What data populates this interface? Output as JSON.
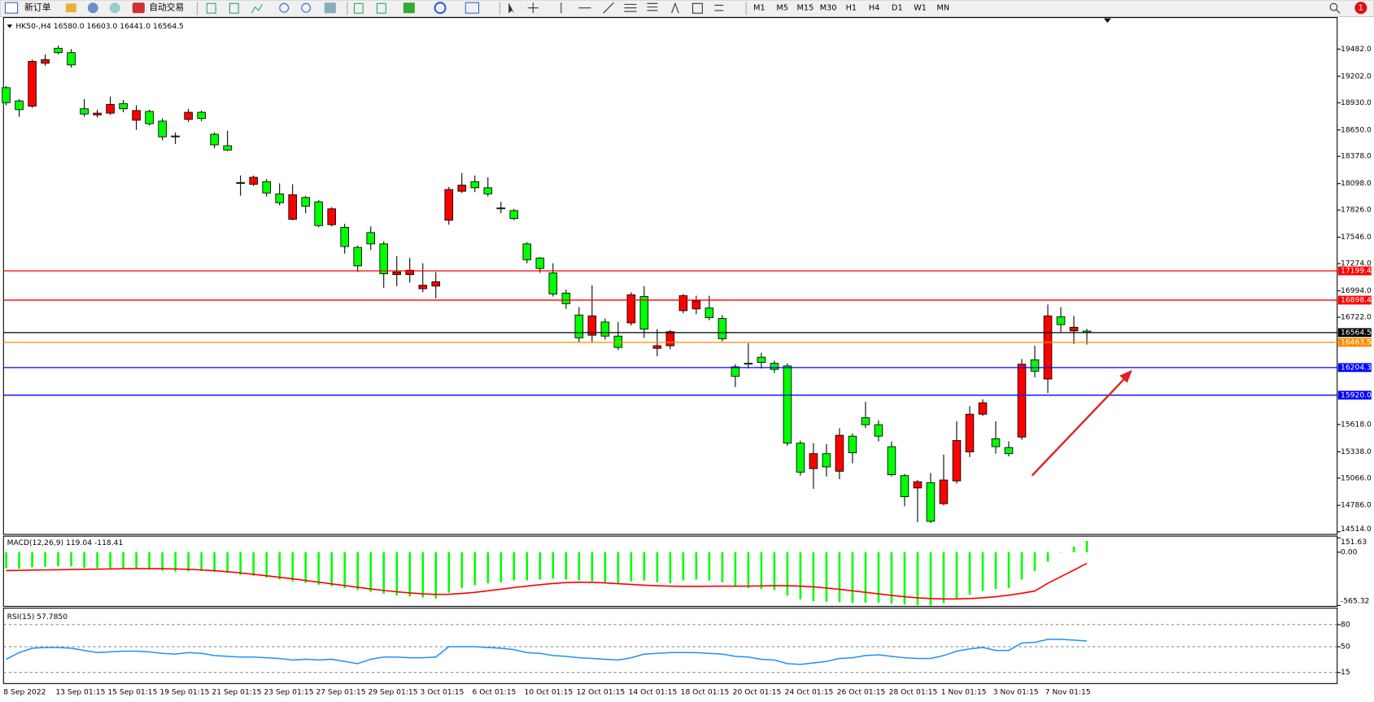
{
  "toolbar": {
    "new_order": "新订单",
    "auto_trading": "自动交易",
    "timeframes": [
      "M1",
      "M5",
      "M15",
      "M30",
      "H1",
      "H4",
      "D1",
      "W1",
      "MN"
    ],
    "alert_count": "1"
  },
  "chart_data": [
    {
      "type": "candlestick",
      "title": "HK50-,H4  16580.0 16603.0 16441.0 16564.5",
      "categories": [
        "8 Sep 2022",
        null,
        null,
        null,
        "13 Sep 01:15",
        null,
        null,
        null,
        "15 Sep 01:15",
        null,
        null,
        null,
        "19 Sep 01:15",
        null,
        null,
        null,
        "21 Sep 01:15",
        null,
        null,
        null,
        "23 Sep 01:15",
        null,
        null,
        null,
        "27 Sep 01:15",
        null,
        null,
        null,
        "29 Sep 01:15",
        null,
        null,
        null,
        "3 Oct 01:15",
        null,
        null,
        null,
        "6 Oct 01:15",
        null,
        null,
        null,
        "10 Oct 01:15",
        null,
        null,
        null,
        "12 Oct 01:15",
        null,
        null,
        null,
        "14 Oct 01:15",
        null,
        null,
        null,
        "18 Oct 01:15",
        null,
        null,
        null,
        "20 Oct 01:15",
        null,
        null,
        null,
        "24 Oct 01:15",
        null,
        null,
        null,
        "26 Oct 01:15",
        null,
        null,
        null,
        "28 Oct 01:15",
        null,
        null,
        null,
        "1 Nov 01:15",
        null,
        null,
        null,
        "3 Nov 01:15",
        null,
        null,
        null,
        "7 Nov 01:15",
        null,
        null,
        null
      ],
      "open": [
        19085,
        18949,
        18895,
        19337,
        19491,
        19446,
        18868,
        18805,
        18823,
        18922,
        18750,
        18841,
        18741,
        18588,
        18759,
        18832,
        18606,
        18488,
        18109,
        18091,
        18118,
        17992,
        17730,
        17955,
        17910,
        17675,
        17648,
        17441,
        17594,
        17477,
        17161,
        17161,
        17016,
        17043,
        17721,
        18019,
        18118,
        18055,
        17847,
        17820,
        17477,
        17332,
        17179,
        16971,
        16745,
        16537,
        16673,
        16528,
        16664,
        16935,
        16402,
        16429,
        16790,
        16808,
        16817,
        16709,
        16212,
        16248,
        16311,
        16248,
        16221,
        15426,
        15164,
        15318,
        15137,
        15498,
        15688,
        15616,
        15390,
        15092,
        14965,
        15020,
        14803,
        15038,
        15336,
        15724,
        15471,
        15381,
        15489,
        16284,
        16086,
        16727,
        16582,
        16580
      ],
      "high": [
        19103,
        18967,
        19374,
        19428,
        19518,
        19482,
        18967,
        18859,
        18994,
        18958,
        18904,
        18859,
        18768,
        18624,
        18868,
        18850,
        18624,
        18642,
        18181,
        18181,
        18145,
        18100,
        18091,
        17973,
        17928,
        17856,
        17684,
        17459,
        17657,
        17504,
        17350,
        17332,
        17278,
        17188,
        18064,
        18208,
        18181,
        18163,
        17910,
        17838,
        17495,
        17341,
        17278,
        17007,
        16826,
        17052,
        16709,
        16673,
        16980,
        17043,
        16600,
        16591,
        16962,
        16944,
        16944,
        16745,
        16239,
        16456,
        16357,
        16275,
        16248,
        15453,
        15426,
        15417,
        15580,
        15526,
        15851,
        15661,
        15444,
        15110,
        15047,
        15119,
        15309,
        15652,
        15806,
        15878,
        15652,
        15444,
        16293,
        16429,
        16853,
        16826,
        16736,
        16603
      ],
      "low": [
        18904,
        18786,
        18877,
        19310,
        19428,
        19292,
        18786,
        18777,
        18805,
        18832,
        18651,
        18696,
        18543,
        18506,
        18732,
        18741,
        18461,
        18434,
        17973,
        18073,
        17964,
        17874,
        17721,
        17793,
        17648,
        17657,
        17377,
        17188,
        17413,
        17025,
        17043,
        17079,
        16980,
        16917,
        17675,
        18001,
        18010,
        17964,
        17793,
        17721,
        17278,
        17179,
        16935,
        16808,
        16465,
        16465,
        16492,
        16384,
        16637,
        16510,
        16320,
        16393,
        16763,
        16754,
        16691,
        16474,
        16004,
        16194,
        16194,
        16149,
        15399,
        15092,
        14957,
        15083,
        15056,
        15218,
        15580,
        15444,
        15083,
        14776,
        14613,
        14604,
        14785,
        15011,
        15282,
        15706,
        15318,
        15291,
        15462,
        16104,
        15941,
        16573,
        16447,
        16441
      ],
      "close": [
        18931,
        18859,
        19356,
        19374,
        19446,
        19319,
        18814,
        18823,
        18913,
        18868,
        18850,
        18714,
        18579,
        18579,
        18832,
        18768,
        18497,
        18443,
        18100,
        18163,
        18001,
        17901,
        17983,
        17865,
        17666,
        17838,
        17450,
        17251,
        17477,
        17170,
        17188,
        17206,
        17052,
        17088,
        18037,
        18082,
        18055,
        17992,
        17838,
        17739,
        17314,
        17224,
        16962,
        16862,
        16510,
        16736,
        16528,
        16411,
        16953,
        16600,
        16429,
        16573,
        16944,
        16890,
        16718,
        16501,
        16113,
        16239,
        16257,
        16185,
        15426,
        15128,
        15318,
        15182,
        15507,
        15327,
        15616,
        15498,
        15101,
        14875,
        15029,
        14622,
        15047,
        15453,
        15724,
        15842,
        15390,
        15318,
        16239,
        16167,
        16736,
        16646,
        16619,
        16564.5
      ],
      "up_color": "#ff0000",
      "down_color": "#00ff00",
      "ylim": [
        14496,
        19798
      ],
      "yticks": [
        {
          "value": 19482,
          "label": "19482.0"
        },
        {
          "value": 19202,
          "label": "19202.0"
        },
        {
          "value": 18930,
          "label": "18930.0"
        },
        {
          "value": 18650,
          "label": "18650.0"
        },
        {
          "value": 18378,
          "label": "18378.0"
        },
        {
          "value": 18098,
          "label": "18098.0"
        },
        {
          "value": 17826,
          "label": "17826.0"
        },
        {
          "value": 17546,
          "label": "17546.0"
        },
        {
          "value": 17274,
          "label": "17274.0"
        },
        {
          "value": 16994,
          "label": "16994.0"
        },
        {
          "value": 16722,
          "label": "16722.0"
        },
        {
          "value": 15618,
          "label": "15618.0"
        },
        {
          "value": 15338,
          "label": "15338.0"
        },
        {
          "value": 15066,
          "label": "15066.0"
        },
        {
          "value": 14786,
          "label": "14786.0"
        },
        {
          "value": 14514,
          "label": "14514.0"
        }
      ],
      "levels": [
        {
          "value": 17199.4,
          "label": "17199.4",
          "color": "#ff0000"
        },
        {
          "value": 16898.4,
          "label": "16898.4",
          "color": "#ff0000"
        },
        {
          "value": 16564.5,
          "label": "16564.5",
          "color": "#000000"
        },
        {
          "value": 16463.5,
          "label": "16463.5",
          "color": "#ff8c00"
        },
        {
          "value": 16204.3,
          "label": "16204.3",
          "color": "#0000ff"
        },
        {
          "value": 15920,
          "label": "15920.0",
          "color": "#0000ff"
        }
      ]
    },
    {
      "type": "macd",
      "title": "MACD(12,26,9) 119.04 -118.41",
      "ylim": [
        -565.32,
        151.63
      ],
      "yticks": [
        151.63,
        {
          "value": 0,
          "label": "0.00"
        },
        -565.32
      ],
      "series": [
        {
          "style": "histogram",
          "color": "#00ff00",
          "values": [
            -170,
            -175,
            -160,
            -155,
            -150,
            -150,
            -165,
            -170,
            -175,
            -170,
            -180,
            -185,
            -195,
            -205,
            -200,
            -200,
            -210,
            -220,
            -240,
            -250,
            -270,
            -290,
            -310,
            -325,
            -345,
            -360,
            -380,
            -400,
            -420,
            -440,
            -460,
            -470,
            -480,
            -490,
            -430,
            -380,
            -350,
            -330,
            -320,
            -300,
            -300,
            -290,
            -280,
            -290,
            -300,
            -310,
            -320,
            -330,
            -310,
            -300,
            -320,
            -330,
            -300,
            -290,
            -300,
            -320,
            -360,
            -380,
            -390,
            -400,
            -460,
            -500,
            -520,
            -525,
            -530,
            -540,
            -535,
            -535,
            -545,
            -555,
            -560,
            -565,
            -540,
            -500,
            -450,
            -410,
            -390,
            -380,
            -290,
            -200,
            -100,
            0,
            60,
            119.04
          ]
        },
        {
          "style": "line",
          "color": "#ff0000",
          "values": [
            -195,
            -193,
            -190,
            -188,
            -186,
            -184,
            -182,
            -180,
            -178,
            -176,
            -175,
            -175,
            -176,
            -178,
            -182,
            -188,
            -196,
            -207,
            -220,
            -235,
            -250,
            -266,
            -282,
            -300,
            -318,
            -336,
            -354,
            -372,
            -390,
            -406,
            -420,
            -432,
            -442,
            -448,
            -446,
            -438,
            -426,
            -410,
            -392,
            -375,
            -360,
            -345,
            -332,
            -322,
            -318,
            -320,
            -326,
            -334,
            -342,
            -350,
            -356,
            -360,
            -362,
            -362,
            -361,
            -360,
            -360,
            -360,
            -358,
            -356,
            -356,
            -360,
            -368,
            -380,
            -394,
            -410,
            -426,
            -442,
            -458,
            -472,
            -484,
            -492,
            -496,
            -496,
            -492,
            -484,
            -472,
            -456,
            -436,
            -412,
            -330,
            -260,
            -190,
            -118.41
          ]
        }
      ]
    },
    {
      "type": "rsi",
      "title": "RSI(15) 57.7850",
      "ylim": [
        0,
        100
      ],
      "yticks": [
        80,
        50,
        15
      ],
      "series": [
        {
          "style": "line",
          "color": "#1e90ff",
          "values": [
            33,
            42,
            48,
            49,
            49,
            48,
            45,
            42,
            43,
            44,
            44,
            43,
            41,
            40,
            42,
            41,
            38,
            37,
            36,
            36,
            35,
            34,
            32,
            33,
            32,
            33,
            30,
            27,
            33,
            36,
            36,
            35,
            35,
            36,
            50,
            50,
            50,
            49,
            48,
            46,
            42,
            41,
            38,
            37,
            35,
            34,
            33,
            32,
            35,
            40,
            41,
            42,
            42,
            42,
            41,
            40,
            37,
            36,
            33,
            32,
            27,
            26,
            28,
            30,
            34,
            35,
            38,
            39,
            37,
            35,
            34,
            34,
            38,
            44,
            47,
            49,
            45,
            45,
            55,
            56,
            60,
            60,
            59,
            57.785
          ]
        }
      ]
    }
  ]
}
